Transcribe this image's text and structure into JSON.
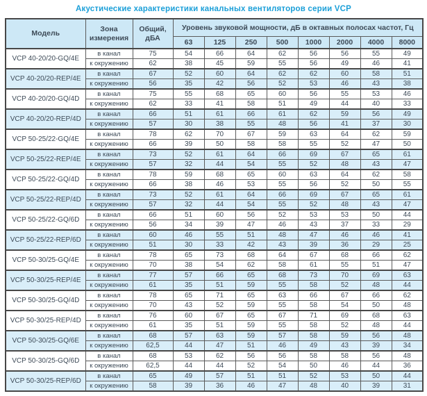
{
  "title": "Акустические характеристики канальных вентиляторов серии VCP",
  "colors": {
    "accent_title": "#1b9fd8",
    "header_bg": "#cde8f6",
    "row_highlight_bg": "#d9eef9",
    "border": "#474747",
    "text": "#3d4a57"
  },
  "table": {
    "headers": {
      "model": "Модель",
      "zone": "Зона измерения",
      "total": "Общий, дБА",
      "spectrum": "Уровень звуковой мощности, дБ в октавных полосах частот, Гц"
    },
    "freqs": [
      "63",
      "125",
      "250",
      "500",
      "1000",
      "2000",
      "4000",
      "8000"
    ],
    "zone_labels": [
      "в канал",
      "к окружению"
    ],
    "groups": [
      {
        "model": "VCP 40-20/20-GQ/4E",
        "shade": "white",
        "rows": [
          {
            "zone": "в канал",
            "total": "75",
            "values": [
              54,
              66,
              64,
              62,
              56,
              56,
              55,
              49
            ]
          },
          {
            "zone": "к окружению",
            "total": "62",
            "values": [
              38,
              45,
              59,
              55,
              56,
              49,
              46,
              41
            ]
          }
        ]
      },
      {
        "model": "VCP 40-20/20-REP/4E",
        "shade": "blue",
        "rows": [
          {
            "zone": "в канал",
            "total": "67",
            "values": [
              52,
              60,
              64,
              62,
              62,
              60,
              58,
              51
            ]
          },
          {
            "zone": "к окружению",
            "total": "56",
            "values": [
              35,
              42,
              56,
              52,
              53,
              46,
              43,
              38
            ]
          }
        ]
      },
      {
        "model": "VCP 40-20/20-GQ/4D",
        "shade": "white",
        "rows": [
          {
            "zone": "в канал",
            "total": "75",
            "values": [
              55,
              68,
              65,
              60,
              56,
              55,
              53,
              46
            ]
          },
          {
            "zone": "к окружению",
            "total": "62",
            "values": [
              33,
              41,
              58,
              51,
              49,
              44,
              40,
              33
            ]
          }
        ]
      },
      {
        "model": "VCP 40-20/20-REP/4D",
        "shade": "blue",
        "rows": [
          {
            "zone": "в канал",
            "total": "66",
            "values": [
              51,
              61,
              66,
              61,
              62,
              59,
              56,
              49
            ]
          },
          {
            "zone": "к окружению",
            "total": "57",
            "values": [
              30,
              38,
              55,
              48,
              56,
              41,
              37,
              30
            ]
          }
        ]
      },
      {
        "model": "VCP 50-25/22-GQ/4E",
        "shade": "white",
        "rows": [
          {
            "zone": "в канал",
            "total": "78",
            "values": [
              62,
              70,
              67,
              59,
              63,
              64,
              62,
              59
            ]
          },
          {
            "zone": "к окружению",
            "total": "66",
            "values": [
              39,
              50,
              58,
              58,
              55,
              52,
              47,
              50
            ]
          }
        ]
      },
      {
        "model": "VCP 50-25/22-REP/4E",
        "shade": "blue",
        "rows": [
          {
            "zone": "в канал",
            "total": "73",
            "values": [
              52,
              61,
              64,
              66,
              69,
              67,
              65,
              61
            ]
          },
          {
            "zone": "к окружению",
            "total": "57",
            "values": [
              32,
              44,
              54,
              55,
              52,
              48,
              43,
              47
            ]
          }
        ]
      },
      {
        "model": "VCP 50-25/22-GQ/4D",
        "shade": "white",
        "rows": [
          {
            "zone": "в канал",
            "total": "78",
            "values": [
              59,
              68,
              65,
              60,
              63,
              64,
              62,
              58
            ]
          },
          {
            "zone": "к окружению",
            "total": "66",
            "values": [
              38,
              46,
              53,
              55,
              56,
              52,
              50,
              55
            ]
          }
        ]
      },
      {
        "model": "VCP 50-25/22-REP/4D",
        "shade": "blue",
        "rows": [
          {
            "zone": "в канал",
            "total": "73",
            "values": [
              52,
              61,
              64,
              66,
              69,
              67,
              65,
              61
            ]
          },
          {
            "zone": "к окружению",
            "total": "57",
            "values": [
              32,
              44,
              54,
              55,
              52,
              48,
              43,
              47
            ]
          }
        ]
      },
      {
        "model": "VCP 50-25/22-GQ/6D",
        "shade": "white",
        "rows": [
          {
            "zone": "в канал",
            "total": "66",
            "values": [
              51,
              60,
              56,
              52,
              53,
              53,
              50,
              44
            ]
          },
          {
            "zone": "к окружению",
            "total": "56",
            "values": [
              34,
              39,
              47,
              46,
              43,
              37,
              33,
              29
            ]
          }
        ]
      },
      {
        "model": "VCP 50-25/22-REP/6D",
        "shade": "blue",
        "rows": [
          {
            "zone": "в канал",
            "total": "60",
            "values": [
              46,
              55,
              51,
              48,
              47,
              46,
              46,
              41
            ]
          },
          {
            "zone": "к окружению",
            "total": "51",
            "values": [
              30,
              33,
              42,
              43,
              39,
              36,
              29,
              25
            ]
          }
        ]
      },
      {
        "model": "VCP 50-30/25-GQ/4E",
        "shade": "white",
        "rows": [
          {
            "zone": "в канал",
            "total": "78",
            "values": [
              65,
              73,
              68,
              64,
              67,
              68,
              66,
              62
            ]
          },
          {
            "zone": "к окружению",
            "total": "70",
            "values": [
              38,
              54,
              62,
              58,
              61,
              55,
              51,
              47
            ]
          }
        ]
      },
      {
        "model": "VCP 50-30/25-REP/4E",
        "shade": "blue",
        "rows": [
          {
            "zone": "в канал",
            "total": "77",
            "values": [
              57,
              66,
              65,
              68,
              73,
              70,
              69,
              63
            ]
          },
          {
            "zone": "к окружению",
            "total": "61",
            "values": [
              35,
              51,
              59,
              55,
              58,
              52,
              48,
              44
            ]
          }
        ]
      },
      {
        "model": "VCP 50-30/25-GQ/4D",
        "shade": "white",
        "rows": [
          {
            "zone": "в канал",
            "total": "78",
            "values": [
              65,
              71,
              65,
              63,
              66,
              67,
              66,
              62
            ]
          },
          {
            "zone": "к окружению",
            "total": "70",
            "values": [
              43,
              52,
              59,
              55,
              58,
              54,
              50,
              48
            ]
          }
        ]
      },
      {
        "model": "VCP 50-30/25-REP/4D",
        "shade": "white",
        "rows": [
          {
            "zone": "в канал",
            "total": "76",
            "values": [
              60,
              67,
              65,
              67,
              71,
              69,
              68,
              63
            ]
          },
          {
            "zone": "к окружению",
            "total": "61",
            "values": [
              35,
              51,
              59,
              55,
              58,
              52,
              48,
              44
            ]
          }
        ]
      },
      {
        "model": "VCP 50-30/25-GQ/6E",
        "shade": "blue",
        "rows": [
          {
            "zone": "в канал",
            "total": "68",
            "values": [
              57,
              63,
              59,
              57,
              58,
              59,
              56,
              48
            ]
          },
          {
            "zone": "к окружению",
            "total": "62,5",
            "values": [
              44,
              47,
              51,
              46,
              49,
              43,
              39,
              34
            ]
          }
        ]
      },
      {
        "model": "VCP 50-30/25-GQ/6D",
        "shade": "white",
        "rows": [
          {
            "zone": "в канал",
            "total": "68",
            "values": [
              53,
              62,
              56,
              56,
              58,
              58,
              56,
              48
            ]
          },
          {
            "zone": "к окружению",
            "total": "62,5",
            "values": [
              44,
              44,
              52,
              54,
              50,
              46,
              44,
              36
            ]
          }
        ]
      },
      {
        "model": "VCP 50-30/25-REP/6D",
        "shade": "blue",
        "rows": [
          {
            "zone": "в канал",
            "total": "65",
            "values": [
              49,
              57,
              51,
              51,
              52,
              53,
              50,
              44
            ]
          },
          {
            "zone": "к окружению",
            "total": "58",
            "values": [
              39,
              36,
              46,
              47,
              48,
              40,
              39,
              31
            ]
          }
        ]
      }
    ]
  }
}
